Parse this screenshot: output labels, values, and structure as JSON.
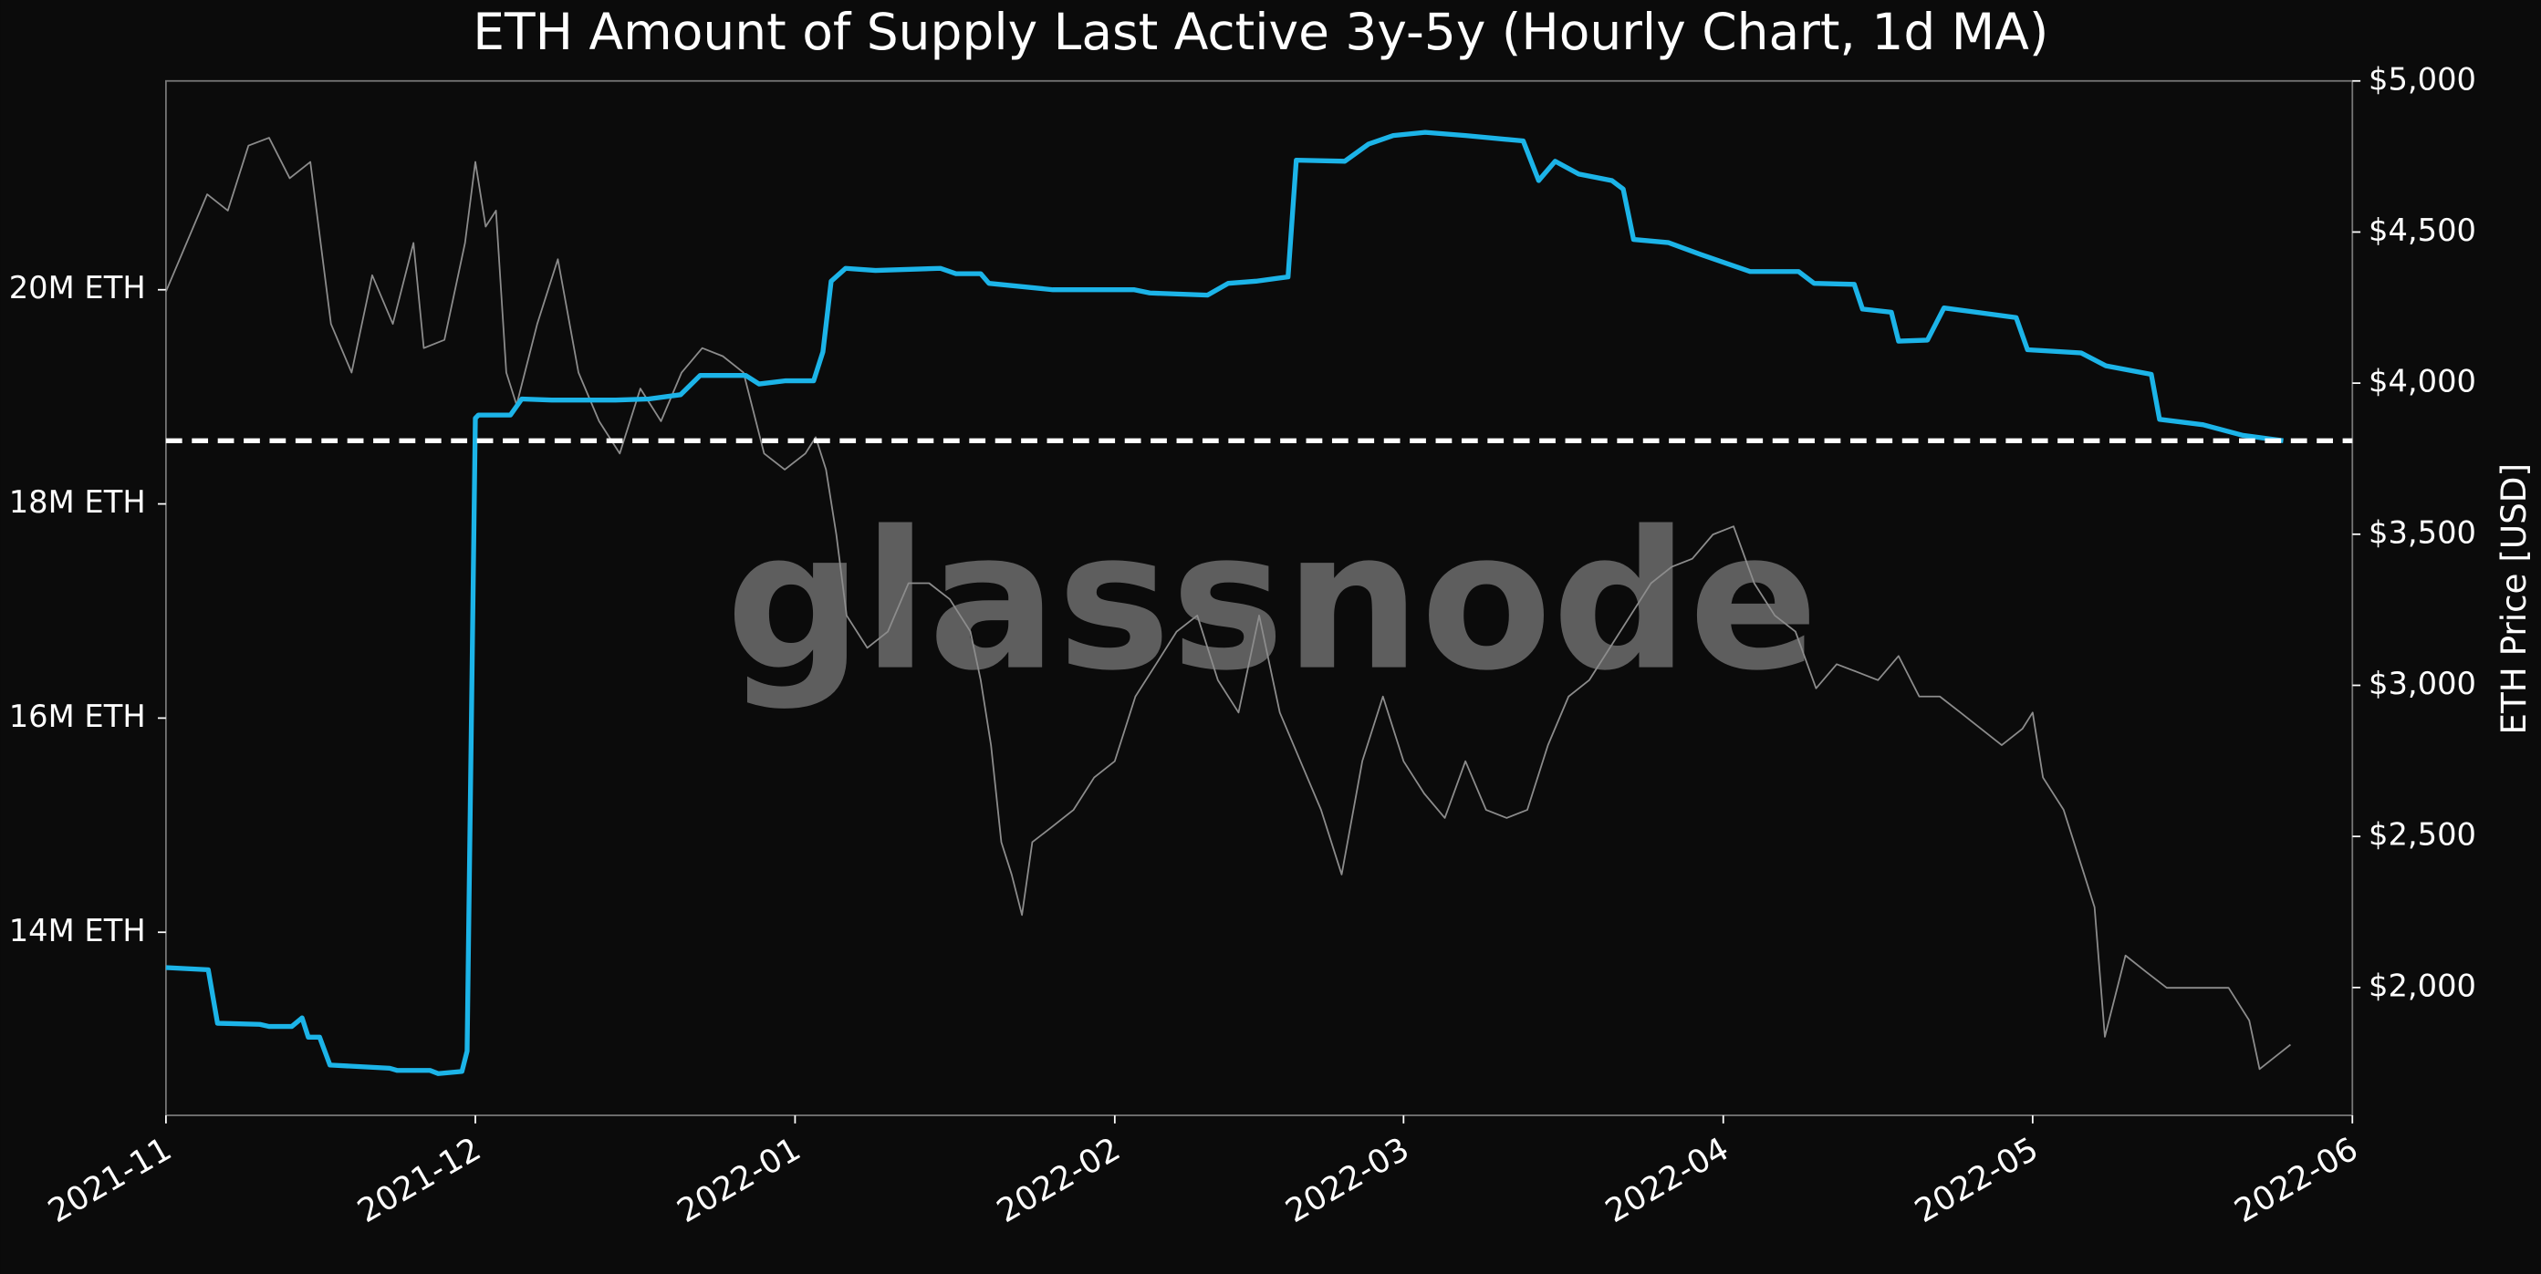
{
  "chart_data": {
    "type": "line",
    "title": "ETH Amount of Supply Last Active 3y-5y (Hourly Chart, 1d MA)",
    "watermark": "glassnode",
    "y2label": "ETH Price [USD]",
    "xlim": [
      0,
      212
    ],
    "xticks": [
      {
        "value": 0,
        "label": "2021-11"
      },
      {
        "value": 30,
        "label": "2021-12"
      },
      {
        "value": 61,
        "label": "2022-01"
      },
      {
        "value": 92,
        "label": "2022-02"
      },
      {
        "value": 120,
        "label": "2022-03"
      },
      {
        "value": 151,
        "label": "2022-04"
      },
      {
        "value": 181,
        "label": "2022-05"
      },
      {
        "value": 212,
        "label": "2022-06"
      }
    ],
    "ylim": [
      12290000,
      21950000
    ],
    "yticks": [
      {
        "value": 14000000,
        "label": "14M ETH"
      },
      {
        "value": 16000000,
        "label": "16M ETH"
      },
      {
        "value": 18000000,
        "label": "18M ETH"
      },
      {
        "value": 20000000,
        "label": "20M ETH"
      }
    ],
    "y2lim": [
      1577,
      5000
    ],
    "y2ticks": [
      {
        "value": 2000,
        "label": "$2,000"
      },
      {
        "value": 2500,
        "label": "$2,500"
      },
      {
        "value": 3000,
        "label": "$3,000"
      },
      {
        "value": 3500,
        "label": "$3,500"
      },
      {
        "value": 4000,
        "label": "$4,000"
      },
      {
        "value": 4500,
        "label": "$4,500"
      },
      {
        "value": 5000,
        "label": "$5,000"
      }
    ],
    "hline": {
      "value": 18590000,
      "color": "#ffffff",
      "style": "dashed"
    },
    "series": [
      {
        "name": "ETH Price",
        "axis": "y2",
        "color": "#8c8c8c",
        "x": [
          0,
          2,
          4,
          6,
          8,
          10,
          12,
          14,
          16,
          18,
          20,
          22,
          24,
          25,
          27,
          29,
          30,
          31,
          32,
          33,
          34,
          36,
          38,
          40,
          42,
          44,
          46,
          48,
          50,
          52,
          54,
          56,
          58,
          60,
          62,
          63,
          64,
          65,
          66,
          68,
          70,
          72,
          74,
          76,
          78,
          79,
          80,
          81,
          82,
          83,
          84,
          86,
          88,
          90,
          92,
          94,
          96,
          98,
          100,
          102,
          104,
          106,
          108,
          110,
          112,
          114,
          116,
          118,
          120,
          122,
          124,
          126,
          128,
          130,
          132,
          134,
          136,
          138,
          140,
          142,
          144,
          146,
          148,
          150,
          152,
          154,
          156,
          158,
          160,
          162,
          164,
          166,
          168,
          170,
          172,
          174,
          176,
          178,
          180,
          181,
          182,
          184,
          186,
          187,
          188,
          190,
          192,
          194,
          196,
          198,
          200,
          202,
          203,
          205,
          206
        ],
        "values": [
          4303,
          4464,
          4625,
          4571,
          4786,
          4812,
          4678,
          4732,
          4196,
          4035,
          4357,
          4196,
          4464,
          4116,
          4143,
          4464,
          4732,
          4518,
          4571,
          4035,
          3928,
          4196,
          4410,
          4035,
          3874,
          3767,
          3982,
          3874,
          4035,
          4116,
          4089,
          4035,
          3767,
          3714,
          3767,
          3821,
          3714,
          3499,
          3231,
          3124,
          3178,
          3338,
          3338,
          3285,
          3178,
          3017,
          2802,
          2481,
          2374,
          2240,
          2481,
          2534,
          2588,
          2695,
          2749,
          2963,
          3070,
          3178,
          3231,
          3017,
          2910,
          3231,
          2910,
          2749,
          2588,
          2374,
          2749,
          2963,
          2749,
          2642,
          2561,
          2749,
          2588,
          2561,
          2588,
          2802,
          2963,
          3017,
          3124,
          3231,
          3338,
          3392,
          3419,
          3499,
          3526,
          3338,
          3231,
          3178,
          2990,
          3070,
          3044,
          3017,
          3097,
          2963,
          2963,
          2910,
          2856,
          2802,
          2856,
          2910,
          2695,
          2588,
          2374,
          2266,
          1837,
          2106,
          2052,
          1999,
          1999,
          1999,
          1999,
          1891,
          1730,
          1784,
          1811
        ]
      },
      {
        "name": "Supply Last Active 3y-5y",
        "axis": "y",
        "color": "#1cb4e8",
        "x": [
          0,
          4.1,
          5,
          9.1,
          10,
          12.2,
          13.2,
          13.8,
          14.9,
          15.9,
          21.7,
          22.4,
          25.6,
          26.4,
          28.7,
          29.2,
          30,
          30.3,
          33.4,
          34.5,
          37.4,
          43.6,
          46.8,
          49.9,
          51.8,
          56.2,
          57.5,
          60.1,
          62.8,
          63.7,
          64.5,
          65.9,
          68.8,
          75.1,
          76.6,
          79,
          79.8,
          86,
          93.9,
          95.4,
          101,
          103,
          105.7,
          108.8,
          109.6,
          114.3,
          116.6,
          119,
          122.1,
          126,
          131.6,
          133.1,
          134.7,
          137,
          140.2,
          141.3,
          142.3,
          145.7,
          148.8,
          153.6,
          158.3,
          159.8,
          163.7,
          164.5,
          167.3,
          168,
          170.8,
          172.4,
          179.4,
          180.5,
          185.7,
          188.1,
          192.5,
          193.3,
          197.5,
          201.4,
          205.3
        ],
        "values": [
          13670000,
          13650000,
          13150000,
          13140000,
          13120000,
          13120000,
          13200000,
          13020000,
          13020000,
          12760000,
          12730000,
          12710000,
          12710000,
          12680000,
          12700000,
          12890000,
          18800000,
          18830000,
          18830000,
          18980000,
          18970000,
          18970000,
          18980000,
          19020000,
          19200000,
          19200000,
          19120000,
          19150000,
          19150000,
          19420000,
          20080000,
          20200000,
          20180000,
          20200000,
          20150000,
          20150000,
          20060000,
          20000000,
          20000000,
          19970000,
          19950000,
          20060000,
          20080000,
          20120000,
          21210000,
          21200000,
          21360000,
          21440000,
          21470000,
          21440000,
          21390000,
          21020000,
          21200000,
          21080000,
          21020000,
          20940000,
          20470000,
          20440000,
          20330000,
          20170000,
          20170000,
          20060000,
          20050000,
          19820000,
          19790000,
          19520000,
          19530000,
          19830000,
          19740000,
          19440000,
          19410000,
          19290000,
          19210000,
          18790000,
          18740000,
          18640000,
          18590000
        ]
      }
    ]
  }
}
